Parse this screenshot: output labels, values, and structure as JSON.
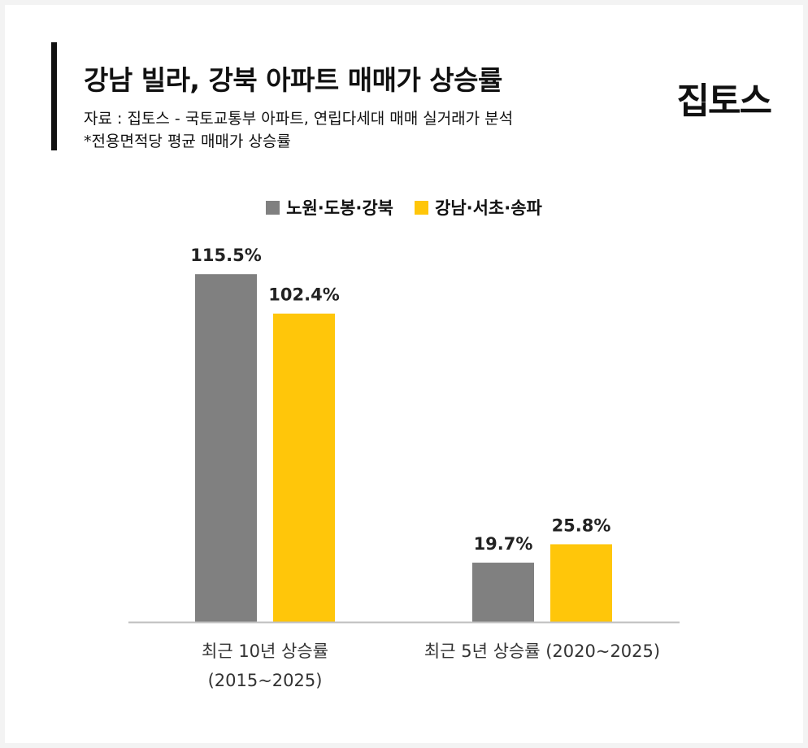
{
  "header": {
    "title": "강남 빌라, 강북 아파트 매매가 상승률",
    "source": "자료 : 집토스 - 국토교통부 아파트, 연립다세대 매매 실거래가 분석",
    "note": "*전용면적당 평균 매매가 상승률",
    "logo": "집토스"
  },
  "colors": {
    "series_gray": "#808080",
    "series_yellow": "#FFC60A",
    "axis": "#bfbfbf"
  },
  "chart_data": {
    "type": "bar",
    "title": "강남 빌라, 강북 아파트 매매가 상승률",
    "categories": [
      [
        "최근 10년 상승률",
        "(2015~2025)"
      ],
      [
        "최근 5년 상승률 (2020~2025)"
      ]
    ],
    "series": [
      {
        "name": "노원·도봉·강북",
        "values": [
          115.5,
          19.7
        ],
        "labels": [
          "115.5%",
          "19.7%"
        ]
      },
      {
        "name": "강남·서초·송파",
        "values": [
          102.4,
          25.8
        ],
        "labels": [
          "102.4%",
          "25.8%"
        ]
      }
    ],
    "unit": "%",
    "ylim": [
      0,
      120
    ],
    "grid": false,
    "legend": "top-center"
  }
}
